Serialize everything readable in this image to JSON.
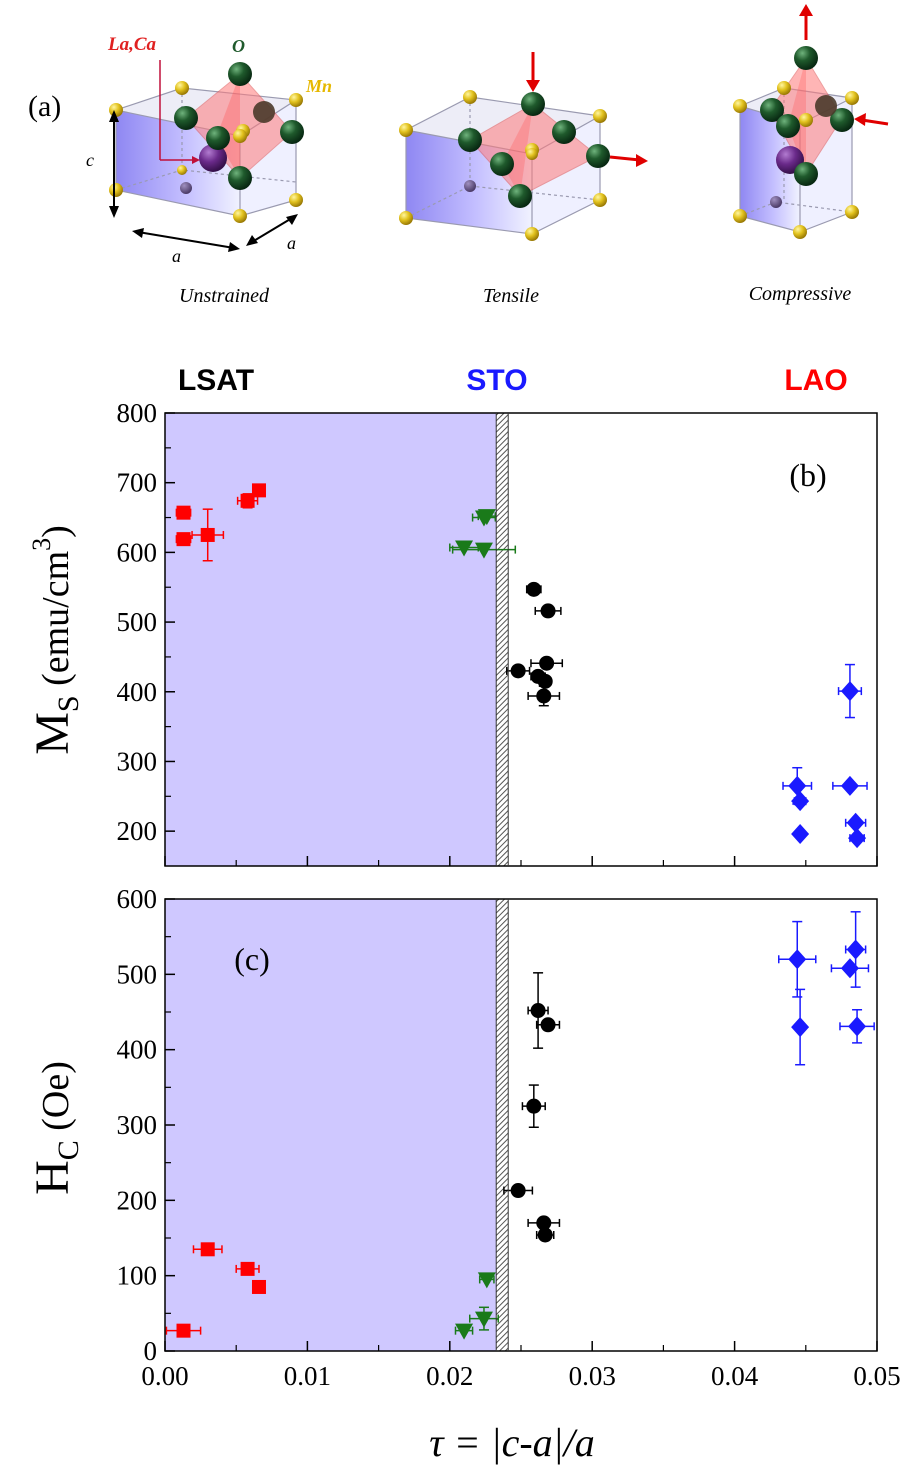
{
  "figure": {
    "panel_a_label": "(a)",
    "atoms": {
      "la_ca": "La,Ca",
      "o": "O",
      "mn": "Mn"
    },
    "axes": {
      "c": "c",
      "a": "a"
    },
    "cells": [
      "Unstrained",
      "Tensile",
      "Compressive"
    ],
    "substrates": [
      {
        "name": "LSAT",
        "color": "#000000"
      },
      {
        "name": "STO",
        "color": "#1a1aff"
      },
      {
        "name": "LAO",
        "color": "#ff0000"
      }
    ],
    "colors": {
      "shade": "#cfc8ff",
      "lsat_series": "#ff0000",
      "sto_series_green": "#1a7a1a",
      "sto_series_black": "#000000",
      "lao_series": "#1a1aff",
      "atom_o": "#0f4a1f",
      "atom_mn": "#e0c020",
      "atom_la": "#6a2a8a",
      "octahedron": "#ff6b6b"
    }
  },
  "chart_data": [
    {
      "type": "scatter",
      "panel_label": "(b)",
      "ylabel": "M",
      "ylabel_sub": "S",
      "ylabel_unit": " (emu/cm",
      "ylabel_sup": "3",
      "ylabel_close": ")",
      "xlim": [
        0,
        0.05
      ],
      "ylim": [
        150,
        800
      ],
      "yticks": [
        "200",
        "300",
        "400",
        "500",
        "600",
        "700",
        "800"
      ],
      "shaded_until_x": 0.0234,
      "series": [
        {
          "marker": "square",
          "color": "#ff0000",
          "points": [
            {
              "x": 0.0013,
              "y": 657,
              "xerr": 0.0005,
              "yerr": 0
            },
            {
              "x": 0.0013,
              "y": 619,
              "xerr": 0.0005,
              "yerr": 0
            },
            {
              "x": 0.003,
              "y": 625,
              "xerr": 0.0011,
              "yerr": 37
            },
            {
              "x": 0.0058,
              "y": 674,
              "xerr": 0.0007,
              "yerr": 10
            },
            {
              "x": 0.0066,
              "y": 689,
              "xerr": 0.0004,
              "yerr": 0
            }
          ]
        },
        {
          "marker": "triangle-down",
          "color": "#1a7a1a",
          "points": [
            {
              "x": 0.021,
              "y": 607,
              "xerr": 0.001,
              "yerr": 0
            },
            {
              "x": 0.0224,
              "y": 604,
              "xerr": 0.0022,
              "yerr": 0
            },
            {
              "x": 0.0224,
              "y": 650,
              "xerr": 0.0008,
              "yerr": 0
            },
            {
              "x": 0.0226,
              "y": 652,
              "xerr": 0.0006,
              "yerr": 0
            }
          ]
        },
        {
          "marker": "circle",
          "color": "#000000",
          "points": [
            {
              "x": 0.0248,
              "y": 430,
              "xerr": 0.0008,
              "yerr": 0
            },
            {
              "x": 0.0259,
              "y": 547,
              "xerr": 0.0005,
              "yerr": 0
            },
            {
              "x": 0.0262,
              "y": 422,
              "xerr": 0.0005,
              "yerr": 0
            },
            {
              "x": 0.0266,
              "y": 394,
              "xerr": 0.0011,
              "yerr": 14
            },
            {
              "x": 0.0267,
              "y": 415,
              "xerr": 0.0004,
              "yerr": 0
            },
            {
              "x": 0.0268,
              "y": 441,
              "xerr": 0.0011,
              "yerr": 0
            },
            {
              "x": 0.0269,
              "y": 516,
              "xerr": 0.0009,
              "yerr": 0
            }
          ]
        },
        {
          "marker": "diamond",
          "color": "#1a1aff",
          "points": [
            {
              "x": 0.0444,
              "y": 265,
              "xerr": 0.001,
              "yerr": 26
            },
            {
              "x": 0.0446,
              "y": 243,
              "xerr": 0.0004,
              "yerr": 0
            },
            {
              "x": 0.0446,
              "y": 196,
              "xerr": 0.0003,
              "yerr": 0
            },
            {
              "x": 0.0481,
              "y": 401,
              "xerr": 0.0008,
              "yerr": 38
            },
            {
              "x": 0.0481,
              "y": 265,
              "xerr": 0.0012,
              "yerr": 0
            },
            {
              "x": 0.0485,
              "y": 212,
              "xerr": 0.0007,
              "yerr": 0
            },
            {
              "x": 0.0486,
              "y": 190,
              "xerr": 0.0005,
              "yerr": 0
            }
          ]
        }
      ]
    },
    {
      "type": "scatter",
      "panel_label": "(c)",
      "ylabel": "H",
      "ylabel_sub": "C",
      "ylabel_unit": " (Oe)",
      "xlabel_tau": "τ",
      "xlabel_rest": " = |c-a|/a",
      "xlim": [
        0,
        0.05
      ],
      "ylim": [
        0,
        600
      ],
      "xticks": [
        "0.00",
        "0.01",
        "0.02",
        "0.03",
        "0.04",
        "0.05"
      ],
      "yticks": [
        "0",
        "100",
        "200",
        "300",
        "400",
        "500",
        "600"
      ],
      "shaded_until_x": 0.0234,
      "series": [
        {
          "marker": "square",
          "color": "#ff0000",
          "points": [
            {
              "x": 0.0013,
              "y": 27,
              "xerr": 0.0012,
              "yerr": 0
            },
            {
              "x": 0.003,
              "y": 135,
              "xerr": 0.001,
              "yerr": 0
            },
            {
              "x": 0.0058,
              "y": 109,
              "xerr": 0.0008,
              "yerr": 0
            },
            {
              "x": 0.0066,
              "y": 85,
              "xerr": 0.0004,
              "yerr": 0
            }
          ]
        },
        {
          "marker": "triangle-down",
          "color": "#1a7a1a",
          "points": [
            {
              "x": 0.021,
              "y": 27,
              "xerr": 0.0006,
              "yerr": 0
            },
            {
              "x": 0.0224,
              "y": 43,
              "xerr": 0.001,
              "yerr": 15
            },
            {
              "x": 0.0226,
              "y": 95,
              "xerr": 0.0005,
              "yerr": 0
            }
          ]
        },
        {
          "marker": "circle",
          "color": "#000000",
          "points": [
            {
              "x": 0.0248,
              "y": 213,
              "xerr": 0.001,
              "yerr": 0
            },
            {
              "x": 0.0259,
              "y": 325,
              "xerr": 0.0008,
              "yerr": 28
            },
            {
              "x": 0.0262,
              "y": 452,
              "xerr": 0.0007,
              "yerr": 50
            },
            {
              "x": 0.0266,
              "y": 170,
              "xerr": 0.0011,
              "yerr": 0
            },
            {
              "x": 0.0267,
              "y": 154,
              "xerr": 0.0006,
              "yerr": 0
            },
            {
              "x": 0.0269,
              "y": 433,
              "xerr": 0.0008,
              "yerr": 0
            }
          ]
        },
        {
          "marker": "diamond",
          "color": "#1a1aff",
          "points": [
            {
              "x": 0.0444,
              "y": 520,
              "xerr": 0.0013,
              "yerr": 50
            },
            {
              "x": 0.0446,
              "y": 430,
              "xerr": 0.0003,
              "yerr": 50
            },
            {
              "x": 0.0481,
              "y": 508,
              "xerr": 0.0013,
              "yerr": 0
            },
            {
              "x": 0.0485,
              "y": 533,
              "xerr": 0.0007,
              "yerr": 50
            },
            {
              "x": 0.0486,
              "y": 431,
              "xerr": 0.0012,
              "yerr": 22
            }
          ]
        }
      ]
    }
  ]
}
